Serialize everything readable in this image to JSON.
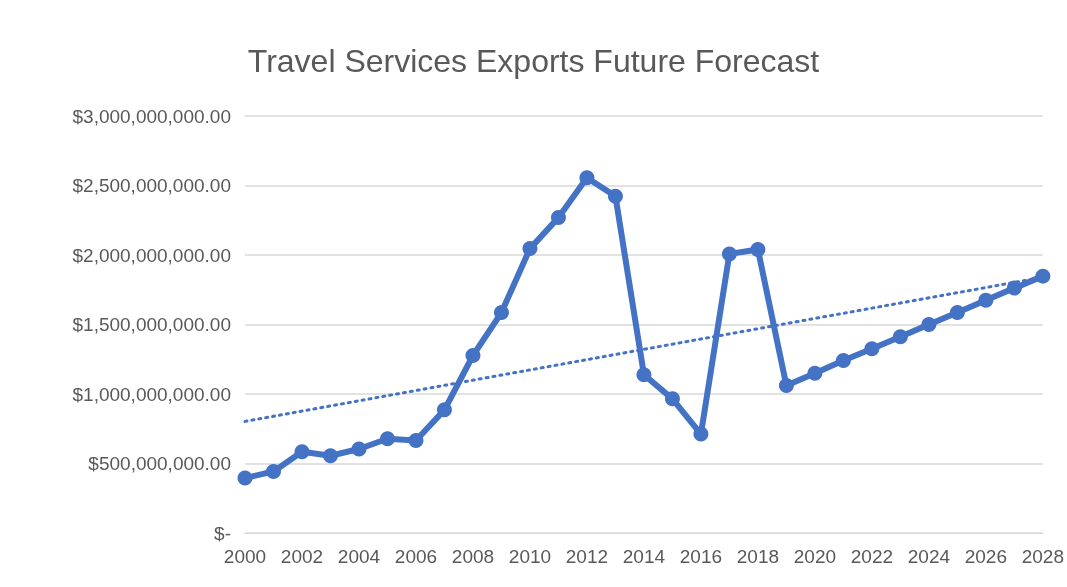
{
  "chart_data": {
    "type": "line",
    "title": "Travel Services Exports Future Forecast",
    "x": [
      2000,
      2001,
      2002,
      2003,
      2004,
      2005,
      2006,
      2007,
      2008,
      2009,
      2010,
      2011,
      2012,
      2013,
      2014,
      2015,
      2016,
      2017,
      2018,
      2019,
      2020,
      2021,
      2022,
      2023,
      2024,
      2025,
      2026,
      2027,
      2028
    ],
    "series": [
      {
        "color": "#4472c4",
        "marker": "circle",
        "line_style": "solid",
        "values": [
          395000000,
          443000000,
          585000000,
          556000000,
          604000000,
          678000000,
          666000000,
          886000000,
          1277000000,
          1586000000,
          2046000000,
          2269000000,
          2556000000,
          2422000000,
          1138000000,
          965000000,
          712000000,
          2008000000,
          2039000000,
          1061000000,
          1150000000,
          1241000000,
          1325000000,
          1412000000,
          1500000000,
          1587000000,
          1675000000,
          1762000000,
          1848000000
        ]
      },
      {
        "color": "#4472c4",
        "marker": "none",
        "line_style": "dotted",
        "x": [
          2000,
          2028
        ],
        "values": [
          803000000,
          1840000000
        ]
      }
    ],
    "xlim": [
      2000,
      2028
    ],
    "xticks": [
      2000,
      2002,
      2004,
      2006,
      2008,
      2010,
      2012,
      2014,
      2016,
      2018,
      2020,
      2022,
      2024,
      2026,
      2028
    ],
    "ylim": [
      0,
      3000000000
    ],
    "yticks": [
      {
        "value": 0,
        "label": "$-"
      },
      {
        "value": 500000000,
        "label": "$500,000,000.00"
      },
      {
        "value": 1000000000,
        "label": "$1,000,000,000.00"
      },
      {
        "value": 1500000000,
        "label": "$1,500,000,000.00"
      },
      {
        "value": 2000000000,
        "label": "$2,000,000,000.00"
      },
      {
        "value": 2500000000,
        "label": "$2,500,000,000.00"
      },
      {
        "value": 3000000000,
        "label": "$3,000,000,000.00"
      }
    ],
    "grid": "y"
  }
}
